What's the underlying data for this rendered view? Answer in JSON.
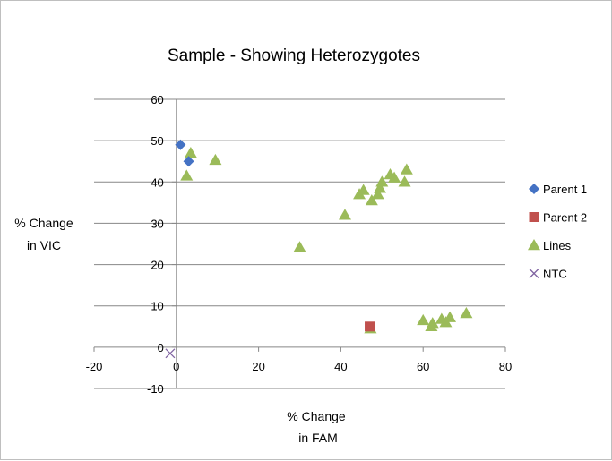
{
  "chart_data": {
    "type": "scatter",
    "title": "Sample - Showing Heterozygotes",
    "xlabel": [
      "% Change",
      "in FAM"
    ],
    "ylabel": [
      "% Change",
      "in VIC"
    ],
    "xlim": [
      -20,
      80
    ],
    "ylim": [
      -10,
      60
    ],
    "x_ticks": [
      -20,
      0,
      20,
      40,
      60,
      80
    ],
    "y_ticks": [
      -10,
      0,
      10,
      20,
      30,
      40,
      50,
      60
    ],
    "grid": true,
    "legend_position": "right",
    "series": [
      {
        "name": "Parent 1",
        "marker": "diamond",
        "color": "#4472c4",
        "points": [
          [
            1,
            49
          ],
          [
            3,
            45
          ]
        ]
      },
      {
        "name": "Parent 2",
        "marker": "square",
        "color": "#c0504d",
        "points": [
          [
            47,
            5
          ]
        ]
      },
      {
        "name": "Lines",
        "marker": "triangle",
        "color": "#9bbb59",
        "points": [
          [
            2.5,
            41.5
          ],
          [
            3.5,
            47
          ],
          [
            9.5,
            45.3
          ],
          [
            30,
            24.2
          ],
          [
            41,
            32
          ],
          [
            44.5,
            37
          ],
          [
            45.5,
            38
          ],
          [
            47.5,
            35.5
          ],
          [
            49,
            37
          ],
          [
            49.5,
            38.5
          ],
          [
            50,
            40
          ],
          [
            52,
            41.8
          ],
          [
            53,
            41
          ],
          [
            55.5,
            40
          ],
          [
            56,
            43
          ],
          [
            47.2,
            4.5
          ],
          [
            60,
            6.5
          ],
          [
            62,
            5
          ],
          [
            62.3,
            5.8
          ],
          [
            64.5,
            6.8
          ],
          [
            65.5,
            6
          ],
          [
            66.5,
            7.2
          ],
          [
            70.5,
            8.2
          ]
        ]
      },
      {
        "name": "NTC",
        "marker": "x",
        "color": "#8064a2",
        "points": [
          [
            -1.5,
            -1.5
          ]
        ]
      }
    ]
  }
}
